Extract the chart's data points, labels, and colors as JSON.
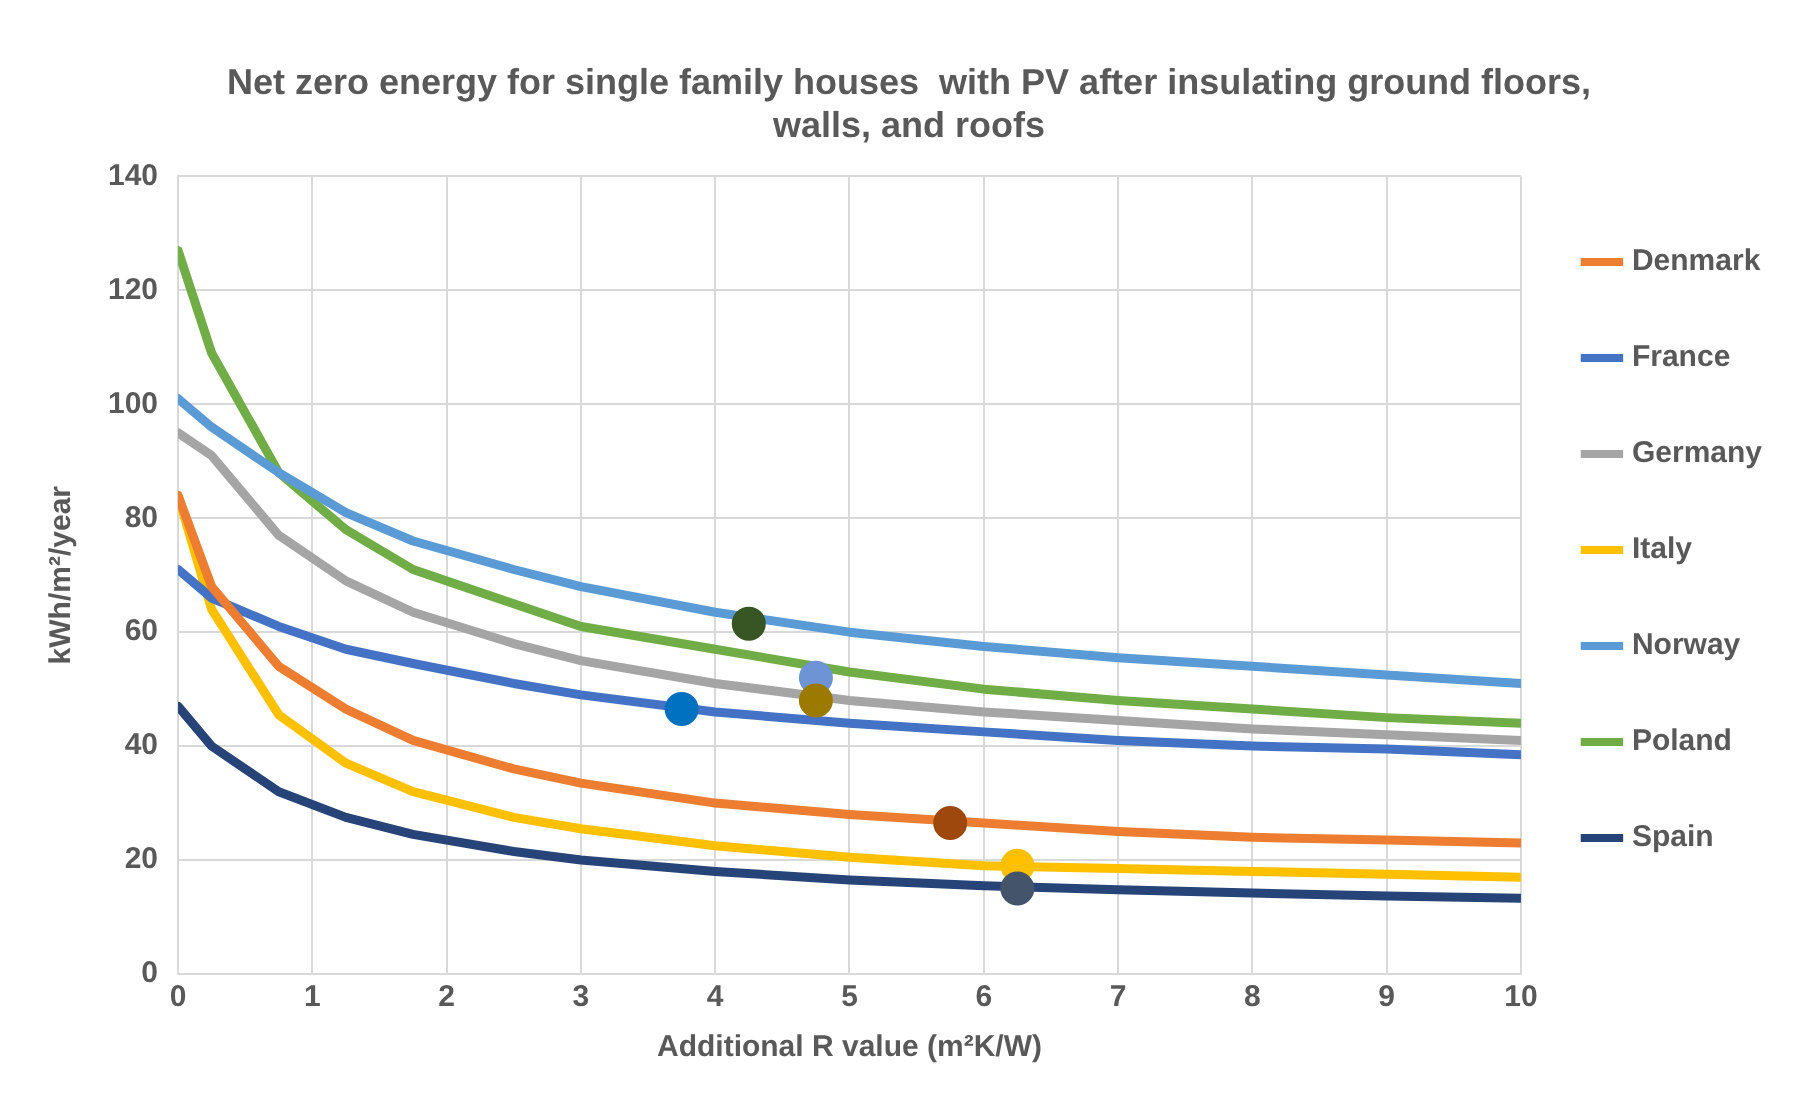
{
  "chart_data": {
    "type": "line",
    "title": "Net zero energy for single family houses  with PV after insulating ground floors, walls, and roofs",
    "xlabel": "Additional R value (m²K/W)",
    "ylabel": "kWh/m²/year",
    "x": [
      0,
      0.25,
      0.75,
      1.25,
      1.75,
      2.5,
      3,
      4,
      5,
      6,
      7,
      8,
      9,
      10
    ],
    "series": [
      {
        "name": "Denmark",
        "color": "#ed7d31",
        "marker": "none",
        "values": [
          84,
          68,
          54,
          46.5,
          41,
          36,
          33.5,
          30,
          28,
          26.5,
          25,
          24,
          23.5,
          23
        ]
      },
      {
        "name": "France",
        "color": "#4472c4",
        "marker": "none",
        "values": [
          71,
          66,
          61,
          57,
          54.5,
          51,
          49,
          46,
          44,
          42.5,
          41,
          40,
          39.5,
          38.5
        ]
      },
      {
        "name": "Germany",
        "color": "#a5a5a5",
        "marker": "none",
        "values": [
          95,
          91,
          77,
          69,
          63.5,
          58,
          55,
          51,
          48,
          46,
          44.5,
          43,
          42,
          41
        ]
      },
      {
        "name": "Italy",
        "color": "#ffc000",
        "marker": "none",
        "values": [
          84,
          64,
          45.5,
          37,
          32,
          27.5,
          25.5,
          22.5,
          20.5,
          19,
          18.5,
          18,
          17.5,
          17
        ]
      },
      {
        "name": "Norway",
        "color": "#5b9bd5",
        "marker": "none",
        "values": [
          101,
          96,
          88,
          81,
          76,
          71,
          68,
          63.5,
          60,
          57.5,
          55.5,
          54,
          52.5,
          51
        ]
      },
      {
        "name": "Poland",
        "color": "#70ad47",
        "marker": "none",
        "values": [
          127,
          109,
          88,
          78,
          71,
          65,
          61,
          57,
          53,
          50,
          48,
          46.5,
          45,
          44
        ]
      },
      {
        "name": "Spain",
        "color": "#264478",
        "marker": "none",
        "values": [
          47,
          40,
          32,
          27.5,
          24.5,
          21.5,
          20,
          18,
          16.5,
          15.5,
          14.8,
          14.2,
          13.7,
          13.3
        ]
      },
      {
        "type": "scatter",
        "marker": "circle",
        "x": [
          4.25,
          4.75,
          4.75,
          3.75,
          5.75,
          6.25,
          6.25
        ],
        "values": [
          61.5,
          52,
          48,
          46.5,
          26.5,
          19,
          15
        ],
        "colors": [
          "#375623",
          "#6f94d6",
          "#9c7a00",
          "#0070c0",
          "#9e480e",
          "#ffc000",
          "#44546a"
        ]
      }
    ],
    "xlim": [
      0,
      10
    ],
    "xticks": [
      0,
      1,
      2,
      3,
      4,
      5,
      6,
      7,
      8,
      9,
      10
    ],
    "ylim": [
      0,
      140
    ],
    "yticks": [
      0,
      20,
      40,
      60,
      80,
      100,
      120,
      140
    ],
    "grid": true,
    "legend": "right",
    "line_style": "solid"
  }
}
